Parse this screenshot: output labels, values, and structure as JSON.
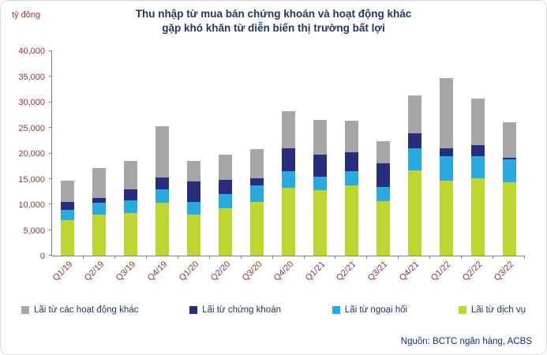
{
  "title_line1": "Thu nhập từ mua bán chứng khoán và hoạt động khác",
  "title_line2": "gặp khó khăn từ diễn biến thị trường bất lợi",
  "y_axis_unit": "tỷ đồng",
  "source": "Nguồn: BCTC ngân hàng, ACBS",
  "colors": {
    "title": "#1f3864",
    "axis_text": "#943634",
    "source_text": "#0b2e8f"
  },
  "chart_data": {
    "type": "bar",
    "stacked": true,
    "title": "Thu nhập từ mua bán chứng khoán và hoạt động khác gặp khó khăn từ diễn biến thị trường bất lợi",
    "ylabel": "tỷ đồng",
    "ylim": [
      0,
      40000
    ],
    "ytick_step": 5000,
    "grid": false,
    "legend_position": "bottom",
    "categories": [
      "Q1/19",
      "Q2/19",
      "Q3/19",
      "Q4/19",
      "Q1/20",
      "Q2/20",
      "Q3/20",
      "Q4/20",
      "Q1/21",
      "Q2/21",
      "Q3/21",
      "Q4/21",
      "Q1/22",
      "Q2/22",
      "Q3/22"
    ],
    "series": [
      {
        "name": "Lãi từ dịch vụ",
        "color": "#bed62f",
        "values": [
          7000,
          8100,
          8300,
          10300,
          8000,
          9200,
          10500,
          13300,
          12800,
          13700,
          10600,
          16700,
          14700,
          15200,
          14300
        ]
      },
      {
        "name": "Lãi từ ngoại hối",
        "color": "#29abe2",
        "values": [
          2000,
          2300,
          2500,
          2700,
          2500,
          2800,
          3300,
          3300,
          2700,
          2800,
          2800,
          4300,
          4800,
          4300,
          4500
        ]
      },
      {
        "name": "Lãi từ chứng khoán",
        "color": "#262d7c",
        "values": [
          1500,
          900,
          2200,
          2300,
          4000,
          2800,
          1400,
          4400,
          4200,
          3700,
          4600,
          2900,
          1500,
          2200,
          400
        ]
      },
      {
        "name": "Lãi từ các hoạt động khác",
        "color": "#a6a6a6",
        "values": [
          4200,
          5900,
          5500,
          10000,
          4000,
          4900,
          5600,
          7300,
          6800,
          6200,
          4400,
          7400,
          13800,
          9100,
          6900
        ]
      }
    ],
    "legend_order": [
      "Lãi từ các hoạt động khác",
      "Lãi từ chứng khoán",
      "Lãi từ ngoại hối",
      "Lãi từ dịch vụ"
    ]
  }
}
